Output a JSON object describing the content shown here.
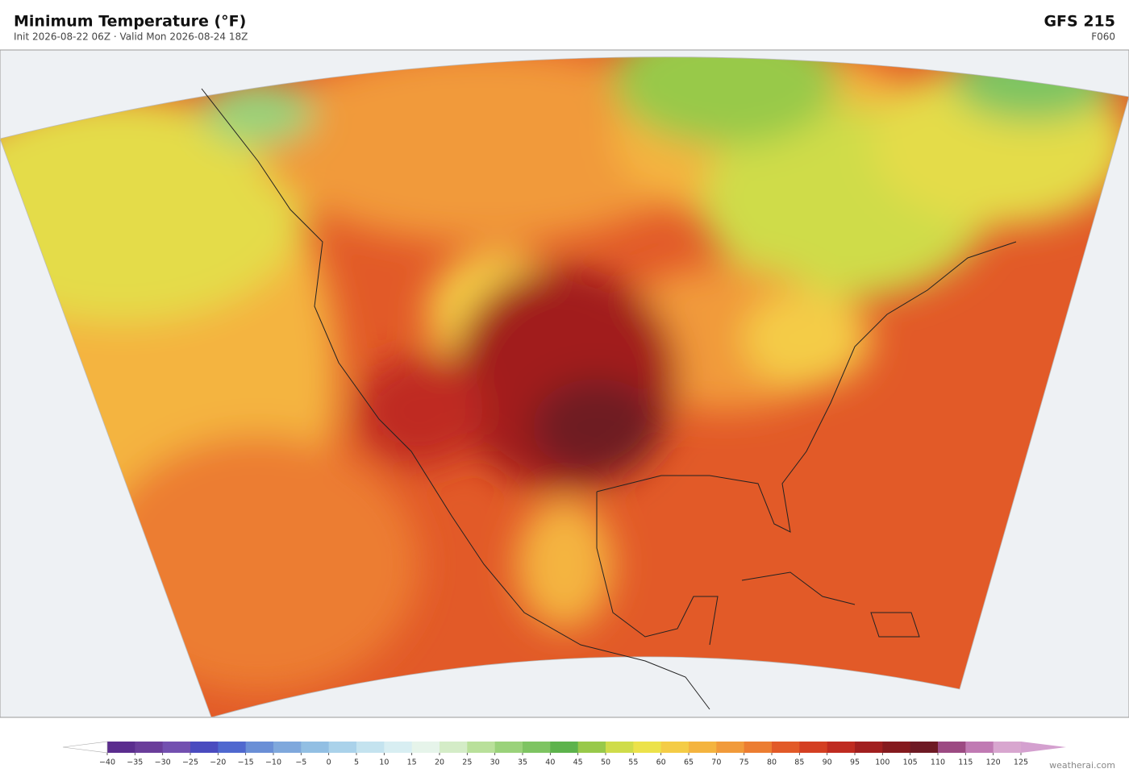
{
  "header": {
    "title": "Minimum Temperature  (°F)",
    "subtitle": "Init 2026-08-22 06Z   ·   Valid Mon 2026-08-24 18Z",
    "model": "GFS  215",
    "forecast_hour": "F060"
  },
  "colorbar": {
    "ticks": [
      {
        "value": -40,
        "label": "−40"
      },
      {
        "value": -35,
        "label": "−35"
      },
      {
        "value": -30,
        "label": "−30"
      },
      {
        "value": -25,
        "label": "−25"
      },
      {
        "value": -20,
        "label": "−20"
      },
      {
        "value": -15,
        "label": "−15"
      },
      {
        "value": -10,
        "label": "−10"
      },
      {
        "value": -5,
        "label": "−5"
      },
      0,
      5,
      10,
      15,
      20,
      25,
      30,
      35,
      40,
      45,
      50,
      55,
      60,
      65,
      70,
      75,
      80,
      85,
      90,
      95,
      100,
      105,
      110,
      115,
      120,
      125
    ],
    "colors": [
      "#5b2d8e",
      "#6a3d9a",
      "#7350b0",
      "#4a4bbf",
      "#4f68cf",
      "#6a8fd6",
      "#7fa8dc",
      "#92bfe3",
      "#aad2ea",
      "#c4e3ef",
      "#d8eef2",
      "#e6f4ea",
      "#d4ecc7",
      "#b9e09a",
      "#9ad27a",
      "#7ec462",
      "#5db34c",
      "#98c94a",
      "#cfdc4a",
      "#ece24a",
      "#f4cc46",
      "#f4b43f",
      "#f19a3a",
      "#ec7d31",
      "#e25a28",
      "#d43f22",
      "#bf2b20",
      "#a11f1f",
      "#851a1e",
      "#6e1a24",
      "#9c4a82",
      "#c07ab3",
      "#d8a6cf"
    ],
    "under_color": "#ffffff",
    "over_color": "#d4a0cf"
  },
  "footer": {
    "credit": "weatherai.com"
  }
}
